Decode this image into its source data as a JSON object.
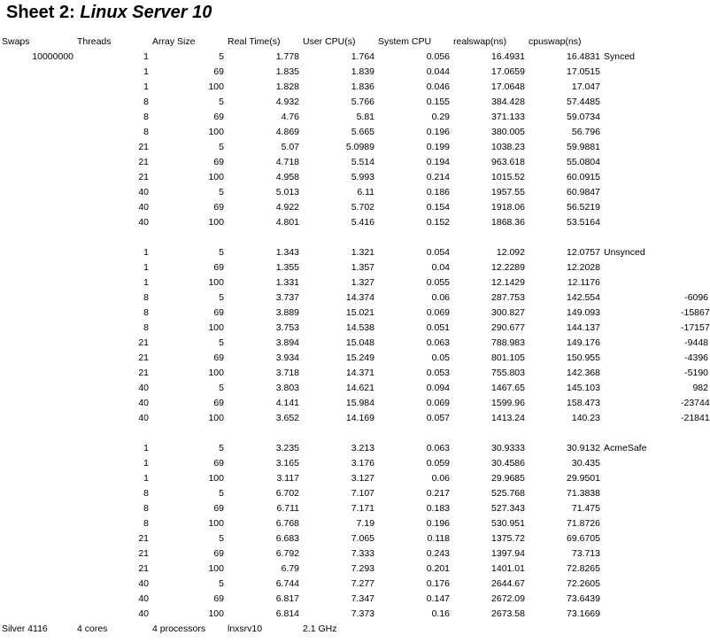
{
  "sheet": {
    "prefix": "Sheet 2:",
    "name": "Linux Server 10"
  },
  "headers": [
    "Swaps",
    "Threads",
    "Array Size",
    "Real Time(s)",
    "User CPU(s)",
    "System CPU",
    "realswap(ns)",
    "cpuswap(ns)"
  ],
  "swaps_value": "10000000",
  "blocks": [
    {
      "label": "Synced",
      "rows": [
        [
          "1",
          "5",
          "1.778",
          "1.764",
          "0.056",
          "16.4931",
          "16.4831",
          ""
        ],
        [
          "1",
          "69",
          "1.835",
          "1.839",
          "0.044",
          "17.0659",
          "17.0515",
          ""
        ],
        [
          "1",
          "100",
          "1.828",
          "1.836",
          "0.046",
          "17.0648",
          "17.047",
          ""
        ],
        [
          "8",
          "5",
          "4.932",
          "5.766",
          "0.155",
          "384.428",
          "57.4485",
          ""
        ],
        [
          "8",
          "69",
          "4.76",
          "5.81",
          "0.29",
          "371.133",
          "59.0734",
          ""
        ],
        [
          "8",
          "100",
          "4.869",
          "5.665",
          "0.196",
          "380.005",
          "56.796",
          ""
        ],
        [
          "21",
          "5",
          "5.07",
          "5.0989",
          "0.199",
          "1038.23",
          "59.9881",
          ""
        ],
        [
          "21",
          "69",
          "4.718",
          "5.514",
          "0.194",
          "963.618",
          "55.0804",
          ""
        ],
        [
          "21",
          "100",
          "4.958",
          "5.993",
          "0.214",
          "1015.52",
          "60.0915",
          ""
        ],
        [
          "40",
          "5",
          "5.013",
          "6.11",
          "0.186",
          "1957.55",
          "60.9847",
          ""
        ],
        [
          "40",
          "69",
          "4.922",
          "5.702",
          "0.154",
          "1918.06",
          "56.5219",
          ""
        ],
        [
          "40",
          "100",
          "4.801",
          "5.416",
          "0.152",
          "1868.36",
          "53.5164",
          ""
        ]
      ]
    },
    {
      "label": "Unsynced",
      "rows": [
        [
          "1",
          "5",
          "1.343",
          "1.321",
          "0.054",
          "12.092",
          "12.0757",
          ""
        ],
        [
          "1",
          "69",
          "1.355",
          "1.357",
          "0.04",
          "12.2289",
          "12.2028",
          ""
        ],
        [
          "1",
          "100",
          "1.331",
          "1.327",
          "0.055",
          "12.1429",
          "12.1176",
          ""
        ],
        [
          "8",
          "5",
          "3.737",
          "14.374",
          "0.06",
          "287.753",
          "142.554",
          "-6096"
        ],
        [
          "8",
          "69",
          "3.889",
          "15.021",
          "0.069",
          "300.827",
          "149.093",
          "-15867"
        ],
        [
          "8",
          "100",
          "3.753",
          "14.538",
          "0.051",
          "290.677",
          "144.137",
          "-17157"
        ],
        [
          "21",
          "5",
          "3.894",
          "15.048",
          "0.063",
          "788.983",
          "149.176",
          "-9448"
        ],
        [
          "21",
          "69",
          "3.934",
          "15.249",
          "0.05",
          "801.105",
          "150.955",
          "-4396"
        ],
        [
          "21",
          "100",
          "3.718",
          "14.371",
          "0.053",
          "755.803",
          "142.368",
          "-5190"
        ],
        [
          "40",
          "5",
          "3.803",
          "14.621",
          "0.094",
          "1467.65",
          "145.103",
          "982"
        ],
        [
          "40",
          "69",
          "4.141",
          "15.984",
          "0.069",
          "1599.96",
          "158.473",
          "-23744"
        ],
        [
          "40",
          "100",
          "3.652",
          "14.169",
          "0.057",
          "1413.24",
          "140.23",
          "-21841"
        ]
      ]
    },
    {
      "label": "AcmeSafe",
      "rows": [
        [
          "1",
          "5",
          "3.235",
          "3.213",
          "0.063",
          "30.9333",
          "30.9132",
          ""
        ],
        [
          "1",
          "69",
          "3.165",
          "3.176",
          "0.059",
          "30.4586",
          "30.435",
          ""
        ],
        [
          "1",
          "100",
          "3.117",
          "3.127",
          "0.06",
          "29.9685",
          "29.9501",
          ""
        ],
        [
          "8",
          "5",
          "6.702",
          "7.107",
          "0.217",
          "525.768",
          "71.3838",
          ""
        ],
        [
          "8",
          "69",
          "6.711",
          "7.171",
          "0.183",
          "527.343",
          "71.475",
          ""
        ],
        [
          "8",
          "100",
          "6.768",
          "7.19",
          "0.196",
          "530.951",
          "71.8726",
          ""
        ],
        [
          "21",
          "5",
          "6.683",
          "7.065",
          "0.118",
          "1375.72",
          "69.6705",
          ""
        ],
        [
          "21",
          "69",
          "6.792",
          "7.333",
          "0.243",
          "1397.94",
          "73.713",
          ""
        ],
        [
          "21",
          "100",
          "6.79",
          "7.293",
          "0.201",
          "1401.01",
          "72.8265",
          ""
        ],
        [
          "40",
          "5",
          "6.744",
          "7.277",
          "0.176",
          "2644.67",
          "72.2605",
          ""
        ],
        [
          "40",
          "69",
          "6.817",
          "7.347",
          "0.147",
          "2672.09",
          "73.6439",
          ""
        ],
        [
          "40",
          "100",
          "6.814",
          "7.373",
          "0.16",
          "2673.58",
          "73.1669",
          ""
        ]
      ]
    }
  ],
  "footer": [
    "Silver 4116",
    "4 cores",
    "4 processors",
    "lnxsrv10",
    "2.1 GHz"
  ]
}
